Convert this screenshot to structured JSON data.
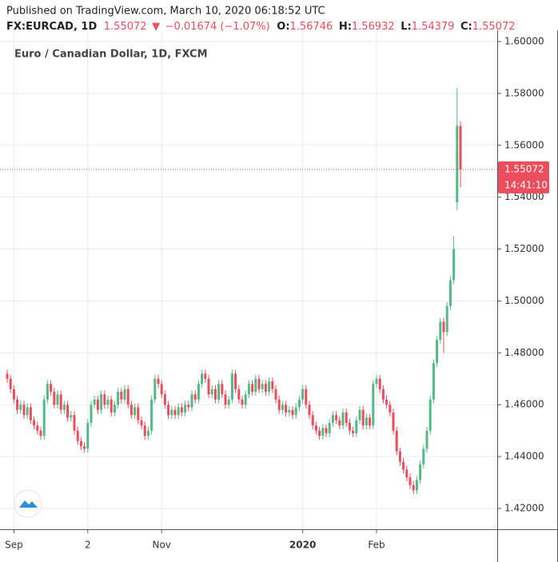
{
  "header": {
    "published": "Published on TradingView.com, March 10, 2020 06:18:52 UTC",
    "symbol": "FX:EURCAD, 1D",
    "last": "1.55072",
    "arrow": "▼",
    "change": "−0.01674 (−1.07%)",
    "o_label": "O:",
    "o": "1.56746",
    "h_label": "H:",
    "h": "1.56932",
    "l_label": "L:",
    "l": "1.54379",
    "c_label": "C:",
    "c": "1.55072"
  },
  "chart_data": {
    "type": "candlestick",
    "title": "Euro / Canadian Dollar, 1D, FXCM",
    "up_color": "#53b987",
    "down_color": "#eb4d5c",
    "grid": true,
    "ylim": [
      1.412,
      1.6043
    ],
    "yticks": [
      {
        "value": 1.42,
        "label": "1.42000"
      },
      {
        "value": 1.44,
        "label": "1.44000"
      },
      {
        "value": 1.46,
        "label": "1.46000"
      },
      {
        "value": 1.48,
        "label": "1.48000"
      },
      {
        "value": 1.5,
        "label": "1.50000"
      },
      {
        "value": 1.52,
        "label": "1.52000"
      },
      {
        "value": 1.54,
        "label": "1.54000"
      },
      {
        "value": 1.56,
        "label": "1.56000"
      },
      {
        "value": 1.58,
        "label": "1.58000"
      },
      {
        "value": 1.6,
        "label": "1.60000"
      }
    ],
    "xticks": [
      {
        "value": 2,
        "label": "Sep"
      },
      {
        "value": 24,
        "label": "2"
      },
      {
        "value": 46,
        "label": "Nov"
      },
      {
        "value": 88,
        "label": "2020"
      },
      {
        "value": 110,
        "label": "Feb"
      }
    ],
    "last_price": {
      "value": 1.55072,
      "label": "1.55072"
    },
    "countdown": "14:41:10",
    "categories": [
      null,
      null,
      null,
      null,
      null,
      null,
      null,
      null,
      null,
      null,
      null,
      null,
      null,
      null,
      null,
      null,
      null,
      null,
      null,
      null,
      null,
      null,
      null,
      null,
      null,
      null,
      null,
      null,
      null,
      null,
      null,
      null,
      null,
      null,
      null,
      null,
      null,
      null,
      null,
      null,
      null,
      null,
      null,
      null,
      null,
      null,
      null,
      null,
      null,
      null,
      null,
      null,
      null,
      null,
      null,
      null,
      null,
      null,
      null,
      null,
      null,
      null,
      null,
      null,
      null,
      null,
      null,
      null,
      null,
      null,
      null,
      null,
      null,
      null,
      null,
      null,
      null,
      null,
      null,
      null,
      null,
      null,
      null,
      null,
      null,
      null,
      null,
      null,
      null,
      null,
      null,
      null,
      null,
      null,
      null,
      null,
      null,
      null,
      null,
      null,
      null,
      null,
      null,
      null,
      null,
      null,
      null,
      null,
      null,
      null,
      null,
      null,
      null,
      null,
      null,
      null,
      null,
      null,
      null,
      null,
      null,
      null,
      null,
      null,
      null,
      null,
      null,
      null,
      null,
      null,
      null,
      null,
      null,
      null,
      null,
      null
    ],
    "open": [
      1.472,
      1.47,
      1.466,
      1.462,
      1.458,
      1.46,
      1.456,
      1.459,
      1.454,
      1.452,
      1.45,
      1.448,
      1.462,
      1.468,
      1.465,
      1.46,
      1.464,
      1.458,
      1.46,
      1.455,
      1.456,
      1.45,
      1.446,
      1.444,
      1.443,
      1.453,
      1.46,
      1.462,
      1.458,
      1.464,
      1.46,
      1.462,
      1.457,
      1.46,
      1.465,
      1.462,
      1.466,
      1.46,
      1.456,
      1.459,
      1.454,
      1.452,
      1.448,
      1.45,
      1.462,
      1.47,
      1.468,
      1.464,
      1.46,
      1.456,
      1.458,
      1.456,
      1.459,
      1.457,
      1.46,
      1.459,
      1.464,
      1.462,
      1.468,
      1.472,
      1.47,
      1.464,
      1.466,
      1.462,
      1.468,
      1.464,
      1.46,
      1.462,
      1.472,
      1.466,
      1.462,
      1.46,
      1.464,
      1.468,
      1.465,
      1.47,
      1.466,
      1.468,
      1.465,
      1.469,
      1.466,
      1.462,
      1.458,
      1.46,
      1.457,
      1.458,
      1.456,
      1.459,
      1.462,
      1.466,
      1.46,
      1.456,
      1.452,
      1.45,
      1.448,
      1.451,
      1.449,
      1.453,
      1.456,
      1.454,
      1.452,
      1.457,
      1.453,
      1.45,
      1.449,
      1.454,
      1.458,
      1.452,
      1.455,
      1.452,
      1.468,
      1.47,
      1.466,
      1.462,
      1.46,
      1.457,
      1.45,
      1.442,
      1.438,
      1.435,
      1.432,
      1.429,
      1.427,
      1.431,
      1.437,
      1.443,
      1.45,
      1.462,
      1.476,
      1.485,
      1.492,
      1.488,
      1.498,
      1.508,
      1.538,
      1.56746
    ],
    "high": [
      1.4735,
      1.4715,
      1.4675,
      1.4635,
      1.4615,
      1.4615,
      1.4605,
      1.4605,
      1.4555,
      1.4535,
      1.4515,
      1.4635,
      1.4695,
      1.4695,
      1.4665,
      1.4655,
      1.4655,
      1.4615,
      1.4615,
      1.4575,
      1.4575,
      1.4515,
      1.4475,
      1.4455,
      1.4545,
      1.4615,
      1.4635,
      1.4635,
      1.4655,
      1.4655,
      1.4635,
      1.4635,
      1.4615,
      1.4665,
      1.4665,
      1.4675,
      1.4675,
      1.4615,
      1.4605,
      1.4605,
      1.4555,
      1.4535,
      1.4515,
      1.4635,
      1.4715,
      1.4715,
      1.4695,
      1.4655,
      1.4615,
      1.4595,
      1.4595,
      1.4605,
      1.4605,
      1.4615,
      1.4615,
      1.4655,
      1.4655,
      1.4695,
      1.4735,
      1.4735,
      1.4715,
      1.4675,
      1.4675,
      1.4695,
      1.4695,
      1.4655,
      1.4635,
      1.4735,
      1.4735,
      1.4675,
      1.4635,
      1.4655,
      1.4695,
      1.4695,
      1.4715,
      1.4715,
      1.4695,
      1.4695,
      1.4705,
      1.4705,
      1.4675,
      1.4635,
      1.4615,
      1.4615,
      1.4595,
      1.4595,
      1.4605,
      1.4635,
      1.4675,
      1.4675,
      1.4615,
      1.4575,
      1.4535,
      1.4515,
      1.4525,
      1.4525,
      1.4545,
      1.4575,
      1.4575,
      1.4555,
      1.4585,
      1.4585,
      1.4545,
      1.4515,
      1.4555,
      1.4595,
      1.4595,
      1.4565,
      1.4565,
      1.4695,
      1.4715,
      1.4715,
      1.4675,
      1.4635,
      1.4615,
      1.4585,
      1.4515,
      1.4435,
      1.4395,
      1.4365,
      1.4335,
      1.4305,
      1.4325,
      1.4385,
      1.4445,
      1.4515,
      1.4635,
      1.4775,
      1.4865,
      1.4935,
      1.4935,
      1.4995,
      1.5095,
      1.525,
      1.582,
      1.56932
    ],
    "low": [
      1.4685,
      1.4645,
      1.4605,
      1.4565,
      1.4565,
      1.4545,
      1.4545,
      1.4525,
      1.4505,
      1.4485,
      1.4465,
      1.4465,
      1.4605,
      1.4635,
      1.4585,
      1.4585,
      1.4565,
      1.4565,
      1.4535,
      1.4535,
      1.4485,
      1.4445,
      1.4425,
      1.4415,
      1.4415,
      1.4515,
      1.4585,
      1.4565,
      1.4565,
      1.4585,
      1.4585,
      1.4555,
      1.4555,
      1.4585,
      1.4605,
      1.4605,
      1.4585,
      1.4545,
      1.4545,
      1.4525,
      1.4505,
      1.4465,
      1.4465,
      1.4485,
      1.4605,
      1.4665,
      1.4625,
      1.4585,
      1.4545,
      1.4545,
      1.4545,
      1.4545,
      1.4555,
      1.4555,
      1.4575,
      1.4575,
      1.4605,
      1.4605,
      1.4665,
      1.4685,
      1.4625,
      1.4625,
      1.4605,
      1.4605,
      1.4625,
      1.4585,
      1.4585,
      1.4605,
      1.4645,
      1.4605,
      1.4585,
      1.4585,
      1.4625,
      1.4635,
      1.4635,
      1.4645,
      1.4645,
      1.4635,
      1.4635,
      1.4645,
      1.4605,
      1.4565,
      1.4565,
      1.4555,
      1.4555,
      1.4545,
      1.4545,
      1.4575,
      1.4605,
      1.4585,
      1.4545,
      1.4505,
      1.4485,
      1.4465,
      1.4465,
      1.4475,
      1.4475,
      1.4515,
      1.4525,
      1.4505,
      1.4505,
      1.4515,
      1.4485,
      1.4475,
      1.4475,
      1.4525,
      1.4505,
      1.4505,
      1.4505,
      1.4505,
      1.4665,
      1.4645,
      1.4605,
      1.4585,
      1.4555,
      1.4485,
      1.4405,
      1.4365,
      1.4335,
      1.4305,
      1.4275,
      1.4255,
      1.4255,
      1.4295,
      1.4355,
      1.4415,
      1.4485,
      1.4605,
      1.4745,
      1.4835,
      1.48,
      1.4865,
      1.4965,
      1.5065,
      1.535,
      1.54379
    ],
    "close": [
      1.47,
      1.466,
      1.462,
      1.458,
      1.46,
      1.456,
      1.459,
      1.454,
      1.452,
      1.45,
      1.448,
      1.462,
      1.468,
      1.465,
      1.46,
      1.464,
      1.458,
      1.46,
      1.455,
      1.456,
      1.45,
      1.446,
      1.444,
      1.443,
      1.453,
      1.46,
      1.462,
      1.458,
      1.464,
      1.46,
      1.462,
      1.457,
      1.46,
      1.465,
      1.462,
      1.466,
      1.46,
      1.456,
      1.459,
      1.454,
      1.452,
      1.448,
      1.45,
      1.462,
      1.47,
      1.468,
      1.464,
      1.46,
      1.456,
      1.458,
      1.456,
      1.459,
      1.457,
      1.46,
      1.459,
      1.464,
      1.462,
      1.468,
      1.472,
      1.47,
      1.464,
      1.466,
      1.462,
      1.468,
      1.464,
      1.46,
      1.462,
      1.472,
      1.466,
      1.462,
      1.46,
      1.464,
      1.468,
      1.465,
      1.47,
      1.466,
      1.468,
      1.465,
      1.469,
      1.466,
      1.462,
      1.458,
      1.46,
      1.457,
      1.458,
      1.456,
      1.459,
      1.462,
      1.466,
      1.46,
      1.456,
      1.452,
      1.45,
      1.448,
      1.451,
      1.449,
      1.453,
      1.456,
      1.454,
      1.452,
      1.457,
      1.453,
      1.45,
      1.449,
      1.454,
      1.458,
      1.452,
      1.455,
      1.452,
      1.468,
      1.47,
      1.466,
      1.462,
      1.46,
      1.457,
      1.45,
      1.442,
      1.438,
      1.435,
      1.432,
      1.429,
      1.427,
      1.431,
      1.437,
      1.443,
      1.45,
      1.462,
      1.476,
      1.485,
      1.492,
      1.488,
      1.498,
      1.508,
      1.52,
      1.5675,
      1.55072
    ]
  }
}
